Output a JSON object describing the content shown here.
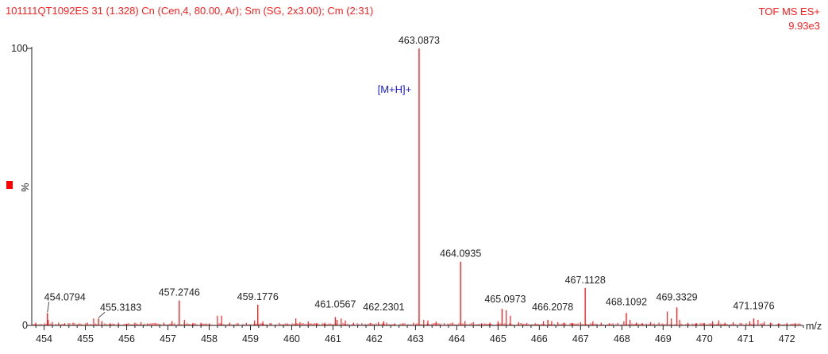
{
  "header": {
    "left_text": "101111QT1092ES  31 (1.328) Cn (Cen,4, 80.00, Ar); Sm (SG, 2x3.00); Cm (2:31)",
    "right_line1": "TOF MS ES+",
    "right_line2": "9.93e3"
  },
  "colors": {
    "peak": "#ff2020",
    "header": "#ff2020",
    "annotation": "#1a1ad0",
    "axis": "#222222",
    "marker": "#ff0000"
  },
  "chart_data": {
    "type": "line",
    "title": "",
    "xlabel": "m/z",
    "ylabel": "%",
    "xlim": [
      453.7,
      472.4
    ],
    "ylim": [
      0,
      100
    ],
    "x_ticks": [
      454,
      455,
      456,
      457,
      458,
      459,
      460,
      461,
      462,
      463,
      464,
      465,
      466,
      467,
      468,
      469,
      470,
      471,
      472
    ],
    "y_ticks": [
      0,
      100
    ],
    "annotation": {
      "text": "[M+H]+",
      "x": 462.9,
      "y": 84
    },
    "labeled_peaks": [
      {
        "mz": 454.0794,
        "intensity": 4.5,
        "label": "454.0794"
      },
      {
        "mz": 455.3183,
        "intensity": 2.5,
        "label": "455.3183"
      },
      {
        "mz": 457.2746,
        "intensity": 9.0,
        "label": "457.2746"
      },
      {
        "mz": 459.1776,
        "intensity": 7.5,
        "label": "459.1776"
      },
      {
        "mz": 461.0567,
        "intensity": 3.0,
        "label": "461.0567"
      },
      {
        "mz": 462.2301,
        "intensity": 1.5,
        "label": "462.2301"
      },
      {
        "mz": 463.0873,
        "intensity": 100,
        "label": "463.0873"
      },
      {
        "mz": 464.0935,
        "intensity": 23.0,
        "label": "464.0935"
      },
      {
        "mz": 465.0973,
        "intensity": 6.0,
        "label": "465.0973"
      },
      {
        "mz": 466.2078,
        "intensity": 2.0,
        "label": "466.2078"
      },
      {
        "mz": 467.1128,
        "intensity": 13.5,
        "label": "467.1128"
      },
      {
        "mz": 468.1092,
        "intensity": 4.5,
        "label": "468.1092"
      },
      {
        "mz": 469.3329,
        "intensity": 6.5,
        "label": "469.3329"
      },
      {
        "mz": 471.1976,
        "intensity": 2.5,
        "label": "471.1976"
      }
    ],
    "minor_peaks": [
      [
        453.8,
        1.0
      ],
      [
        454.1,
        2.0
      ],
      [
        454.2,
        1.3
      ],
      [
        454.35,
        1.0
      ],
      [
        454.5,
        0.8
      ],
      [
        454.7,
        1.0
      ],
      [
        454.85,
        0.7
      ],
      [
        455.05,
        1.0
      ],
      [
        455.2,
        2.5
      ],
      [
        455.4,
        1.6
      ],
      [
        455.6,
        0.8
      ],
      [
        455.8,
        1.0
      ],
      [
        456.0,
        0.6
      ],
      [
        456.2,
        1.0
      ],
      [
        456.35,
        1.2
      ],
      [
        456.5,
        0.7
      ],
      [
        456.7,
        0.9
      ],
      [
        456.9,
        1.0
      ],
      [
        457.1,
        1.6
      ],
      [
        457.4,
        2.0
      ],
      [
        457.6,
        0.8
      ],
      [
        457.8,
        1.0
      ],
      [
        458.0,
        0.6
      ],
      [
        458.2,
        3.5
      ],
      [
        458.3,
        3.5
      ],
      [
        458.5,
        1.0
      ],
      [
        458.7,
        0.8
      ],
      [
        458.9,
        0.9
      ],
      [
        459.1,
        1.8
      ],
      [
        459.3,
        1.5
      ],
      [
        459.5,
        0.8
      ],
      [
        459.7,
        0.9
      ],
      [
        459.9,
        0.7
      ],
      [
        460.1,
        2.5
      ],
      [
        460.2,
        1.2
      ],
      [
        460.4,
        1.5
      ],
      [
        460.6,
        0.8
      ],
      [
        460.8,
        1.0
      ],
      [
        461.1,
        2.0
      ],
      [
        461.2,
        2.5
      ],
      [
        461.3,
        1.8
      ],
      [
        461.5,
        1.0
      ],
      [
        461.7,
        0.8
      ],
      [
        461.9,
        0.9
      ],
      [
        462.1,
        1.2
      ],
      [
        462.3,
        1.0
      ],
      [
        462.5,
        0.7
      ],
      [
        462.7,
        0.8
      ],
      [
        462.95,
        1.0
      ],
      [
        463.2,
        2.0
      ],
      [
        463.3,
        1.8
      ],
      [
        463.5,
        1.4
      ],
      [
        463.7,
        0.8
      ],
      [
        463.9,
        1.0
      ],
      [
        464.2,
        1.6
      ],
      [
        464.4,
        1.2
      ],
      [
        464.6,
        0.8
      ],
      [
        464.8,
        1.0
      ],
      [
        465.0,
        1.5
      ],
      [
        465.2,
        5.5
      ],
      [
        465.3,
        3.5
      ],
      [
        465.5,
        1.2
      ],
      [
        465.7,
        0.9
      ],
      [
        465.9,
        0.8
      ],
      [
        466.1,
        1.5
      ],
      [
        466.3,
        1.6
      ],
      [
        466.45,
        1.2
      ],
      [
        466.6,
        1.0
      ],
      [
        466.8,
        0.8
      ],
      [
        467.0,
        1.2
      ],
      [
        467.3,
        1.5
      ],
      [
        467.5,
        1.0
      ],
      [
        467.7,
        0.8
      ],
      [
        467.9,
        0.9
      ],
      [
        468.05,
        1.5
      ],
      [
        468.2,
        2.0
      ],
      [
        468.35,
        1.0
      ],
      [
        468.5,
        0.8
      ],
      [
        468.7,
        1.2
      ],
      [
        468.9,
        1.0
      ],
      [
        469.1,
        5.0
      ],
      [
        469.2,
        2.5
      ],
      [
        469.4,
        2.0
      ],
      [
        469.6,
        1.0
      ],
      [
        469.8,
        0.8
      ],
      [
        470.0,
        0.9
      ],
      [
        470.2,
        1.5
      ],
      [
        470.35,
        1.8
      ],
      [
        470.5,
        1.0
      ],
      [
        470.7,
        1.2
      ],
      [
        470.9,
        0.8
      ],
      [
        471.1,
        1.5
      ],
      [
        471.3,
        2.0
      ],
      [
        471.45,
        1.3
      ],
      [
        471.6,
        1.0
      ],
      [
        471.8,
        0.8
      ],
      [
        472.0,
        0.9
      ],
      [
        472.2,
        0.7
      ]
    ]
  }
}
